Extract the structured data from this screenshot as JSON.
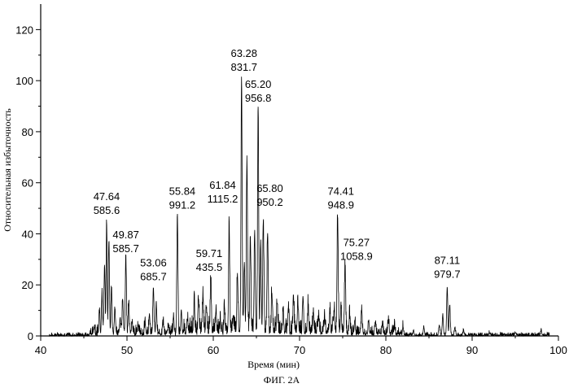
{
  "chart_data": {
    "type": "line",
    "xlabel": "Время (мин)",
    "ylabel": "Относительная избыточность",
    "caption": "ФИГ. 2А",
    "xlim": [
      40,
      100
    ],
    "ylim": [
      0,
      130
    ],
    "x_ticks": [
      "40",
      "50",
      "60",
      "70",
      "80",
      "90",
      "100"
    ],
    "y_ticks": [
      "0",
      "20",
      "40",
      "60",
      "80",
      "100",
      "120"
    ],
    "grid": false,
    "peaks": [
      {
        "time": 47.64,
        "intensity": 43,
        "label_rt": "47.64",
        "label_mz": "585.6"
      },
      {
        "time": 49.87,
        "intensity": 29,
        "label_rt": "49.87",
        "label_mz": "585.7"
      },
      {
        "time": 53.06,
        "intensity": 18,
        "label_rt": "53.06",
        "label_mz": "685.7"
      },
      {
        "time": 55.84,
        "intensity": 46,
        "label_rt": "55.84",
        "label_mz": "991.2"
      },
      {
        "time": 59.71,
        "intensity": 21,
        "label_rt": "59.71",
        "label_mz": "435.5"
      },
      {
        "time": 61.84,
        "intensity": 42,
        "label_rt": "61.84",
        "label_mz": "1115.2"
      },
      {
        "time": 63.28,
        "intensity": 100,
        "label_rt": "63.28",
        "label_mz": "831.7"
      },
      {
        "time": 65.2,
        "intensity": 88,
        "label_rt": "65.20",
        "label_mz": "956.8"
      },
      {
        "time": 65.8,
        "intensity": 44,
        "label_rt": "65.80",
        "label_mz": "950.2"
      },
      {
        "time": 74.41,
        "intensity": 46,
        "label_rt": "74.41",
        "label_mz": "948.9"
      },
      {
        "time": 75.27,
        "intensity": 26,
        "label_rt": "75.27",
        "label_mz": "1058.9"
      },
      {
        "time": 87.11,
        "intensity": 19,
        "label_rt": "87.11",
        "label_mz": "979.7"
      }
    ],
    "other_peaks": [
      [
        46.2,
        3
      ],
      [
        46.8,
        8
      ],
      [
        47.1,
        15
      ],
      [
        47.4,
        27
      ],
      [
        47.9,
        36
      ],
      [
        48.2,
        18
      ],
      [
        48.6,
        10
      ],
      [
        49.2,
        6
      ],
      [
        49.5,
        14
      ],
      [
        50.2,
        12
      ],
      [
        50.6,
        5
      ],
      [
        51.3,
        3
      ],
      [
        52.1,
        4
      ],
      [
        52.6,
        8
      ],
      [
        53.4,
        11
      ],
      [
        54.2,
        4
      ],
      [
        54.8,
        3
      ],
      [
        55.4,
        6
      ],
      [
        56.3,
        9
      ],
      [
        57.0,
        5
      ],
      [
        57.8,
        11
      ],
      [
        58.3,
        13
      ],
      [
        58.8,
        15
      ],
      [
        59.2,
        10
      ],
      [
        60.3,
        7
      ],
      [
        60.8,
        4
      ],
      [
        61.3,
        9
      ],
      [
        62.3,
        6
      ],
      [
        62.8,
        23
      ],
      [
        63.6,
        28
      ],
      [
        63.9,
        69
      ],
      [
        64.3,
        38
      ],
      [
        64.8,
        40
      ],
      [
        65.5,
        32
      ],
      [
        66.3,
        40
      ],
      [
        66.8,
        15
      ],
      [
        67.4,
        12
      ],
      [
        68.1,
        8
      ],
      [
        68.7,
        10
      ],
      [
        69.3,
        14
      ],
      [
        69.8,
        12
      ],
      [
        70.4,
        14
      ],
      [
        71.0,
        10
      ],
      [
        71.6,
        8
      ],
      [
        72.2,
        6
      ],
      [
        72.9,
        5
      ],
      [
        73.5,
        7
      ],
      [
        74.0,
        9
      ],
      [
        74.8,
        10
      ],
      [
        75.8,
        6
      ],
      [
        76.4,
        5
      ],
      [
        77.2,
        9
      ],
      [
        78.0,
        5
      ],
      [
        78.8,
        4
      ],
      [
        79.6,
        3
      ],
      [
        80.3,
        5
      ],
      [
        81.0,
        3
      ],
      [
        82.0,
        3
      ],
      [
        83.2,
        2
      ],
      [
        84.4,
        3
      ],
      [
        86.2,
        4
      ],
      [
        86.6,
        8
      ],
      [
        87.4,
        12
      ],
      [
        88.0,
        3
      ],
      [
        89.0,
        2
      ],
      [
        92.0,
        1
      ],
      [
        95.0,
        1
      ],
      [
        98.0,
        2
      ]
    ]
  }
}
